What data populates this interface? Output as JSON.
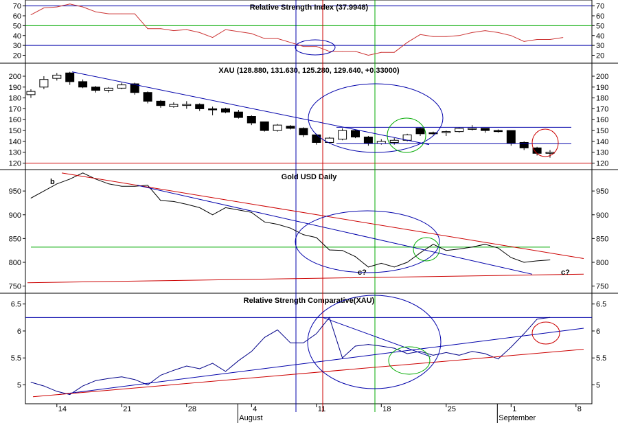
{
  "chart_data": [
    {
      "type": "line",
      "title": "Relative Strength Index (37.9948)",
      "ylim": [
        12,
        76
      ],
      "yticks": [
        20,
        30,
        40,
        50,
        60,
        70
      ],
      "hlines": [
        {
          "value": 70,
          "color": "#0000aa"
        },
        {
          "value": 50,
          "color": "#00aa00"
        },
        {
          "value": 30,
          "color": "#0000aa"
        }
      ],
      "series": [
        {
          "color": "#cc3333",
          "values": [
            61,
            68,
            69,
            72,
            69,
            64,
            62,
            62,
            62,
            47,
            47,
            45,
            46,
            43,
            38,
            46,
            44,
            42,
            37,
            37,
            33,
            29,
            29,
            24,
            24,
            24,
            20,
            23,
            23,
            33,
            41,
            39,
            39,
            40,
            43,
            45,
            43,
            40,
            34,
            36,
            36,
            38
          ]
        }
      ]
    },
    {
      "type": "candlestick",
      "title": "XAU (128.880, 131.630, 125.280, 129.640, +0.33000)",
      "ylim": [
        114,
        212
      ],
      "yticks": [
        120,
        130,
        140,
        150,
        160,
        170,
        180,
        190,
        200
      ],
      "hlines": [
        {
          "value": 120,
          "color": "#cc0000"
        }
      ],
      "candles": [
        [
          183,
          188,
          180,
          186
        ],
        [
          190,
          200,
          188,
          197
        ],
        [
          198,
          203,
          196,
          201
        ],
        [
          203,
          204,
          192,
          195
        ],
        [
          195,
          197,
          189,
          190
        ],
        [
          190,
          191,
          185,
          187
        ],
        [
          187,
          190,
          185,
          189
        ],
        [
          189,
          194,
          188,
          192
        ],
        [
          193,
          194,
          183,
          185
        ],
        [
          185,
          186,
          175,
          177
        ],
        [
          177,
          178,
          171,
          173
        ],
        [
          172,
          176,
          171,
          174
        ],
        [
          174,
          177,
          170,
          174
        ],
        [
          174,
          175,
          168,
          170
        ],
        [
          170,
          172,
          164,
          169
        ],
        [
          170,
          171,
          166,
          167
        ],
        [
          167,
          169,
          161,
          162
        ],
        [
          163,
          164,
          155,
          157
        ],
        [
          158,
          158,
          149,
          150
        ],
        [
          150,
          156,
          149,
          155
        ],
        [
          154,
          155,
          151,
          152
        ],
        [
          152,
          153,
          144,
          146
        ],
        [
          146,
          147,
          137,
          139
        ],
        [
          139,
          144,
          138,
          143
        ],
        [
          142,
          152,
          141,
          150
        ],
        [
          150,
          151,
          143,
          144
        ],
        [
          144,
          145,
          136,
          138
        ],
        [
          138,
          142,
          137,
          140
        ],
        [
          139,
          143,
          137,
          141
        ],
        [
          141,
          147,
          140,
          146
        ],
        [
          152,
          153,
          145,
          147
        ],
        [
          148,
          149,
          146,
          147
        ],
        [
          148,
          150,
          145,
          149
        ],
        [
          149,
          153,
          148,
          152
        ],
        [
          152,
          155,
          150,
          152
        ],
        [
          152,
          152,
          148,
          150
        ],
        [
          150,
          151,
          148,
          149
        ],
        [
          150,
          150,
          136,
          138
        ],
        [
          139,
          140,
          132,
          134
        ],
        [
          134,
          135,
          127,
          129
        ],
        [
          129,
          132,
          125,
          130
        ]
      ]
    },
    {
      "type": "line",
      "title": "Gold USD Daily",
      "ylim": [
        735,
        995
      ],
      "yticks": [
        750,
        800,
        850,
        900,
        950
      ],
      "series": [
        {
          "color": "#000000",
          "values": [
            935,
            950,
            965,
            975,
            988,
            975,
            965,
            960,
            960,
            962,
            930,
            928,
            922,
            915,
            900,
            915,
            910,
            905,
            885,
            880,
            872,
            858,
            852,
            826,
            825,
            812,
            790,
            798,
            790,
            800,
            820,
            838,
            825,
            828,
            832,
            838,
            830,
            810,
            800,
            803,
            805
          ]
        }
      ],
      "hlines": [
        {
          "value": 832,
          "color": "#00aa00",
          "x_start": 0,
          "x_end": 40
        }
      ],
      "annotations": [
        "b",
        "c?",
        "c?"
      ]
    },
    {
      "type": "line",
      "title": "Relative Strength Comparative(XAU)",
      "ylim": [
        4.65,
        6.7
      ],
      "yticks": [
        5.0,
        5.5,
        6.0,
        6.5
      ],
      "hlines": [
        {
          "value": 6.25,
          "color": "#0000aa"
        }
      ],
      "series": [
        {
          "color": "#000088",
          "values": [
            5.05,
            4.98,
            4.88,
            4.82,
            4.98,
            5.08,
            5.12,
            5.15,
            5.1,
            5.0,
            5.18,
            5.27,
            5.35,
            5.3,
            5.4,
            5.25,
            5.45,
            5.62,
            5.88,
            6.02,
            5.78,
            5.78,
            5.95,
            6.25,
            5.5,
            5.72,
            5.75,
            5.72,
            5.68,
            5.58,
            5.62,
            5.55,
            5.6,
            5.55,
            5.62,
            5.58,
            5.48,
            5.7,
            5.95,
            6.22,
            6.25
          ]
        }
      ]
    }
  ],
  "x_axis": {
    "ticks": [
      {
        "label": "14",
        "i": 2
      },
      {
        "label": "21",
        "i": 7
      },
      {
        "label": "28",
        "i": 12
      },
      {
        "label": "4",
        "i": 17
      },
      {
        "label": "11",
        "i": 22
      },
      {
        "label": "18",
        "i": 27
      },
      {
        "label": "25",
        "i": 32
      },
      {
        "label": "1",
        "i": 37
      },
      {
        "label": "8",
        "i": 42
      }
    ],
    "months": [
      {
        "label": "August",
        "i": 17
      },
      {
        "label": "September",
        "i": 37
      }
    ]
  },
  "colors": {
    "blue": "#0000aa",
    "red": "#cc0000",
    "green": "#00aa00",
    "rsi_line": "#cc3333"
  }
}
